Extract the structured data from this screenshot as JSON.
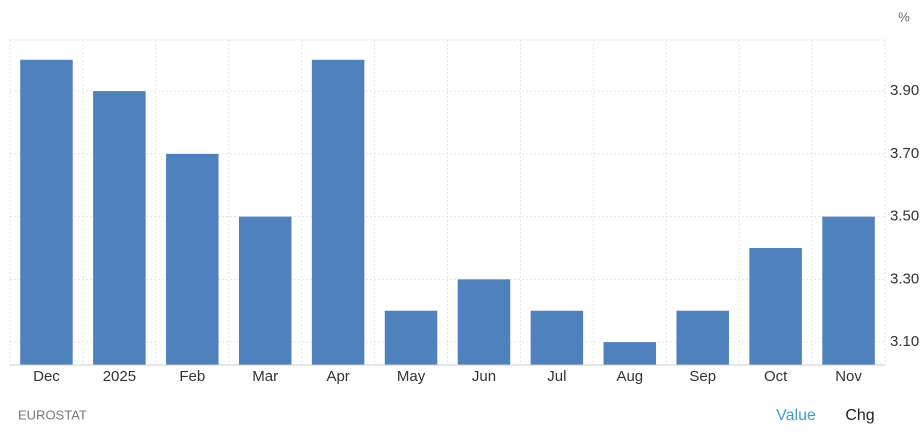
{
  "chart_data": {
    "type": "bar",
    "unit": "%",
    "categories": [
      "Dec",
      "2025",
      "Feb",
      "Mar",
      "Apr",
      "May",
      "Jun",
      "Jul",
      "Aug",
      "Sep",
      "Oct",
      "Nov"
    ],
    "values": [
      4.0,
      3.9,
      3.7,
      3.5,
      4.0,
      3.2,
      3.3,
      3.2,
      3.1,
      3.2,
      3.4,
      3.5
    ],
    "color": "#4f81bd",
    "ylim": [
      3.027,
      4.063
    ],
    "yticks": [
      {
        "value": 3.1,
        "label": "3.10"
      },
      {
        "value": 3.3,
        "label": "3.30"
      },
      {
        "value": 3.5,
        "label": "3.50"
      },
      {
        "value": 3.7,
        "label": "3.70"
      },
      {
        "value": 3.9,
        "label": "3.90"
      }
    ],
    "grid": true
  },
  "footer": {
    "source": "EUROSTAT",
    "tabs": [
      "Value",
      "Chg"
    ]
  }
}
